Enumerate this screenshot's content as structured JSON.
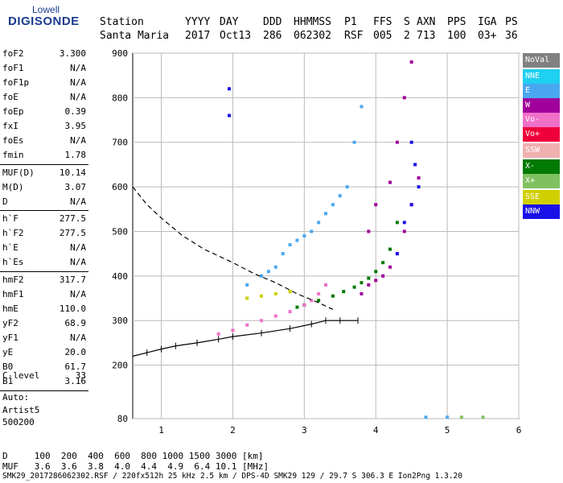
{
  "logo": {
    "top": "Lowell",
    "main": "DIGISONDE"
  },
  "header": {
    "row1": [
      "Station",
      "YYYY",
      "DAY",
      "DDD",
      "HHMMSS",
      "P1",
      "FFS",
      "S",
      "AXN",
      "PPS",
      "IGA",
      "PS"
    ],
    "row2": [
      "Santa Maria",
      "2017",
      "Oct13",
      "286",
      "062302",
      "RSF",
      "005",
      "2",
      "713",
      "100",
      "03+",
      "36"
    ]
  },
  "params": [
    {
      "name": "foF2",
      "value": "3.300"
    },
    {
      "name": "foF1",
      "value": "N/A"
    },
    {
      "name": "foF1p",
      "value": "N/A"
    },
    {
      "name": "foE",
      "value": "N/A"
    },
    {
      "name": "foEp",
      "value": "0.39"
    },
    {
      "name": "fxI",
      "value": "3.95"
    },
    {
      "name": "foEs",
      "value": "N/A"
    },
    {
      "name": "fmin",
      "value": "1.78"
    },
    {
      "name": "MUF(D)",
      "value": "10.14"
    },
    {
      "name": "M(D)",
      "value": "3.07"
    },
    {
      "name": "D",
      "value": "N/A"
    },
    {
      "name": "h`F",
      "value": "277.5"
    },
    {
      "name": "h`F2",
      "value": "277.5"
    },
    {
      "name": "h`E",
      "value": "N/A"
    },
    {
      "name": "h`Es",
      "value": "N/A"
    },
    {
      "name": "hmF2",
      "value": "317.7"
    },
    {
      "name": "hmF1",
      "value": "N/A"
    },
    {
      "name": "hmE",
      "value": "110.0"
    },
    {
      "name": "yF2",
      "value": "68.9"
    },
    {
      "name": "yF1",
      "value": "N/A"
    },
    {
      "name": "yE",
      "value": "20.0"
    },
    {
      "name": "B0",
      "value": "61.7"
    },
    {
      "name": "B1",
      "value": "3.16"
    },
    {
      "name": "C-level",
      "value": "33"
    }
  ],
  "auto": {
    "line1": "Auto:",
    "line2": "Artist5",
    "line3": "500200"
  },
  "legend": [
    {
      "label": "NoVal",
      "color": "#808080",
      "text_color": "#ffffff"
    },
    {
      "label": "NNE",
      "color": "#1fd0f0",
      "text_color": "#ffffff"
    },
    {
      "label": "E",
      "color": "#4aa8f0",
      "text_color": "#ffffff"
    },
    {
      "label": "W",
      "color": "#a0009a",
      "text_color": "#ffffff"
    },
    {
      "label": "Vo-",
      "color": "#f070c8",
      "text_color": "#ffffff"
    },
    {
      "label": "Vo+",
      "color": "#f0003a",
      "text_color": "#ffffff"
    },
    {
      "label": "SSW",
      "color": "#f0b0b0",
      "text_color": "#ffffff"
    },
    {
      "label": "X-",
      "color": "#007a00",
      "text_color": "#ffffff"
    },
    {
      "label": "X+",
      "color": "#80c060",
      "text_color": "#ffffff"
    },
    {
      "label": "SSE",
      "color": "#d0d000",
      "text_color": "#ffffff"
    },
    {
      "label": "NNW",
      "color": "#1a10e8",
      "text_color": "#ffffff"
    }
  ],
  "footer": {
    "line1": "D     100  200  400  600  800 1000 1500 3000 [km]",
    "line2": "MUF   3.6  3.6  3.8  4.0  4.4  4.9  6.4 10.1 [MHz]",
    "line3": "SMK29_2017286062302.RSF / 220fx512h 25 kHz 2.5 km / DPS-4D SMK29 129 / 29.7 S 306.3 E Ion2Png 1.3.20"
  },
  "chart_data": {
    "type": "scatter",
    "xlim": [
      0.6,
      6.0
    ],
    "ylim": [
      80,
      900
    ],
    "xticks": [
      1,
      2,
      3,
      4,
      5,
      6
    ],
    "yticks": [
      80,
      200,
      300,
      400,
      500,
      600,
      700,
      800,
      900
    ],
    "grid": true,
    "series": [
      {
        "name": "X-",
        "color": "#007a00",
        "points": [
          [
            2.9,
            330
          ],
          [
            3.0,
            335
          ],
          [
            3.2,
            345
          ],
          [
            3.4,
            355
          ],
          [
            3.55,
            365
          ],
          [
            3.7,
            375
          ],
          [
            3.8,
            385
          ],
          [
            3.9,
            395
          ],
          [
            4.0,
            410
          ],
          [
            4.1,
            430
          ],
          [
            4.2,
            460
          ],
          [
            4.3,
            520
          ]
        ]
      },
      {
        "name": "Vo-",
        "color": "#f070c8",
        "points": [
          [
            1.8,
            270
          ],
          [
            2.0,
            278
          ],
          [
            2.2,
            290
          ],
          [
            2.4,
            300
          ],
          [
            2.6,
            310
          ],
          [
            2.8,
            320
          ],
          [
            3.0,
            335
          ],
          [
            3.1,
            345
          ],
          [
            3.2,
            360
          ],
          [
            3.3,
            380
          ]
        ]
      },
      {
        "name": "W",
        "color": "#a0009a",
        "points": [
          [
            3.8,
            360
          ],
          [
            3.9,
            380
          ],
          [
            4.0,
            390
          ],
          [
            4.1,
            400
          ],
          [
            4.2,
            420
          ],
          [
            4.3,
            450
          ],
          [
            4.4,
            500
          ],
          [
            4.5,
            560
          ],
          [
            4.6,
            620
          ],
          [
            3.9,
            500
          ],
          [
            4.0,
            560
          ],
          [
            4.2,
            610
          ],
          [
            4.3,
            700
          ],
          [
            4.4,
            800
          ],
          [
            4.5,
            880
          ]
        ]
      },
      {
        "name": "NNW",
        "color": "#1a10e8",
        "points": [
          [
            4.3,
            450
          ],
          [
            4.4,
            520
          ],
          [
            4.5,
            560
          ],
          [
            4.6,
            600
          ],
          [
            4.55,
            650
          ],
          [
            4.5,
            700
          ],
          [
            1.95,
            820
          ],
          [
            1.95,
            760
          ]
        ]
      },
      {
        "name": "E",
        "color": "#4aa8f0",
        "points": [
          [
            2.2,
            380
          ],
          [
            2.4,
            400
          ],
          [
            2.5,
            410
          ],
          [
            2.6,
            420
          ],
          [
            2.7,
            450
          ],
          [
            2.8,
            470
          ],
          [
            2.9,
            480
          ],
          [
            3.0,
            490
          ],
          [
            3.1,
            500
          ],
          [
            3.2,
            520
          ],
          [
            3.3,
            540
          ],
          [
            3.4,
            560
          ],
          [
            3.5,
            580
          ],
          [
            3.6,
            600
          ],
          [
            3.7,
            700
          ],
          [
            3.8,
            780
          ],
          [
            5.0,
            83
          ],
          [
            4.7,
            83
          ]
        ]
      },
      {
        "name": "SSE",
        "color": "#d0d000",
        "points": [
          [
            2.2,
            350
          ],
          [
            2.4,
            355
          ],
          [
            2.6,
            360
          ],
          [
            2.8,
            365
          ]
        ]
      },
      {
        "name": "X+",
        "color": "#80c060",
        "points": [
          [
            5.2,
            83
          ],
          [
            5.5,
            83
          ]
        ]
      }
    ],
    "profile_curve": [
      [
        0.6,
        220
      ],
      [
        0.8,
        228
      ],
      [
        1.0,
        236
      ],
      [
        1.2,
        243
      ],
      [
        1.5,
        250
      ],
      [
        1.8,
        258
      ],
      [
        2.0,
        264
      ],
      [
        2.4,
        272
      ],
      [
        2.8,
        282
      ],
      [
        3.1,
        292
      ],
      [
        3.3,
        300
      ],
      [
        3.5,
        300
      ],
      [
        3.75,
        300
      ]
    ],
    "dashed_curve": [
      [
        0.6,
        600
      ],
      [
        0.8,
        560
      ],
      [
        1.0,
        530
      ],
      [
        1.3,
        490
      ],
      [
        1.6,
        460
      ],
      [
        2.0,
        430
      ],
      [
        2.3,
        405
      ],
      [
        2.6,
        385
      ],
      [
        2.9,
        360
      ],
      [
        3.2,
        340
      ],
      [
        3.4,
        325
      ]
    ]
  }
}
